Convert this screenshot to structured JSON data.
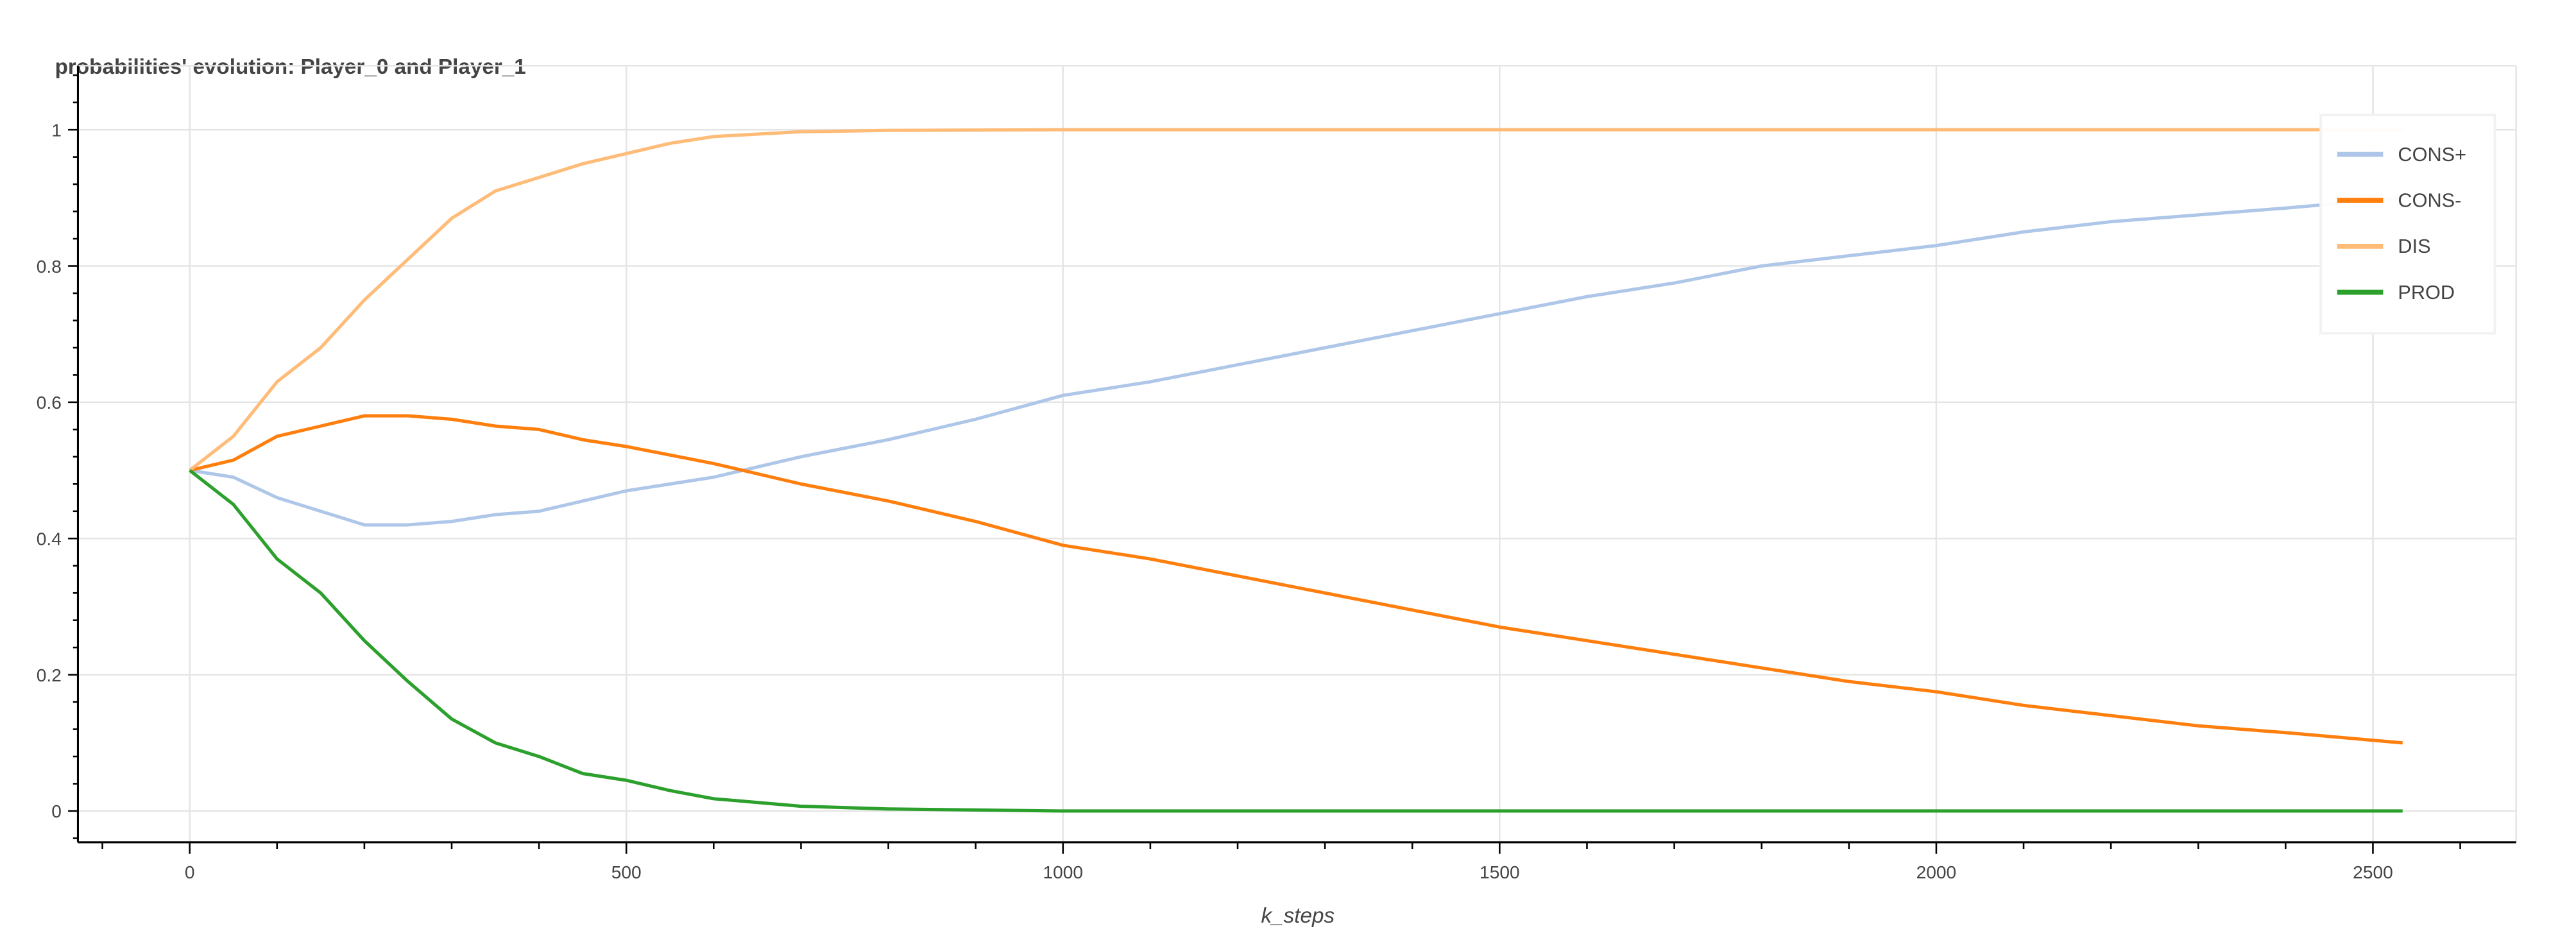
{
  "chart_data": {
    "type": "line",
    "title": "probabilities' evolution: Player_0 and Player_1",
    "xlabel": "k_steps",
    "ylabel": "",
    "xlim": [
      -128,
      2664
    ],
    "ylim": [
      -0.046,
      1.094
    ],
    "xticks": [
      0,
      500,
      1000,
      1500,
      2000,
      2500
    ],
    "xtick_labels": [
      "0",
      "500",
      "1000",
      "1500",
      "2000",
      "2500"
    ],
    "yticks": [
      0,
      0.2,
      0.4,
      0.6,
      0.8,
      1
    ],
    "ytick_labels": [
      "0",
      "0.2",
      "0.4",
      "0.6",
      "0.8",
      "1"
    ],
    "grid": true,
    "legend_position": "top-right",
    "series": [
      {
        "name": "CONS+",
        "color": "#aec7e8",
        "x": [
          0,
          50,
          100,
          150,
          200,
          250,
          300,
          350,
          400,
          450,
          500,
          600,
          700,
          800,
          900,
          1000,
          1100,
          1200,
          1300,
          1400,
          1500,
          1600,
          1700,
          1800,
          1900,
          2000,
          2100,
          2200,
          2300,
          2400,
          2534
        ],
        "y": [
          0.5,
          0.49,
          0.46,
          0.44,
          0.42,
          0.42,
          0.425,
          0.435,
          0.44,
          0.455,
          0.47,
          0.49,
          0.52,
          0.545,
          0.575,
          0.61,
          0.63,
          0.655,
          0.68,
          0.705,
          0.73,
          0.755,
          0.775,
          0.8,
          0.815,
          0.83,
          0.85,
          0.865,
          0.875,
          0.885,
          0.9
        ]
      },
      {
        "name": "CONS-",
        "color": "#ff7f0e",
        "x": [
          0,
          50,
          100,
          150,
          200,
          250,
          300,
          350,
          400,
          450,
          500,
          600,
          700,
          800,
          900,
          1000,
          1100,
          1200,
          1300,
          1400,
          1500,
          1600,
          1700,
          1800,
          1900,
          2000,
          2100,
          2200,
          2300,
          2400,
          2534
        ],
        "y": [
          0.5,
          0.515,
          0.55,
          0.565,
          0.58,
          0.58,
          0.575,
          0.565,
          0.56,
          0.545,
          0.535,
          0.51,
          0.48,
          0.455,
          0.425,
          0.39,
          0.37,
          0.345,
          0.32,
          0.295,
          0.27,
          0.25,
          0.23,
          0.21,
          0.19,
          0.175,
          0.155,
          0.14,
          0.125,
          0.115,
          0.1
        ]
      },
      {
        "name": "DIS",
        "color": "#ffbb78",
        "x": [
          0,
          50,
          100,
          150,
          200,
          250,
          300,
          350,
          400,
          450,
          500,
          550,
          600,
          700,
          800,
          1000,
          1500,
          2000,
          2534
        ],
        "y": [
          0.5,
          0.55,
          0.63,
          0.68,
          0.75,
          0.81,
          0.87,
          0.91,
          0.93,
          0.95,
          0.965,
          0.98,
          0.99,
          0.997,
          0.999,
          1,
          1,
          1,
          1
        ]
      },
      {
        "name": "PROD",
        "color": "#2ca02c",
        "x": [
          0,
          50,
          100,
          150,
          200,
          250,
          300,
          350,
          400,
          450,
          500,
          550,
          600,
          700,
          800,
          1000,
          1500,
          2000,
          2534
        ],
        "y": [
          0.5,
          0.45,
          0.37,
          0.32,
          0.25,
          0.19,
          0.135,
          0.1,
          0.08,
          0.055,
          0.045,
          0.03,
          0.018,
          0.007,
          0.003,
          0,
          0,
          0,
          0
        ]
      }
    ]
  }
}
